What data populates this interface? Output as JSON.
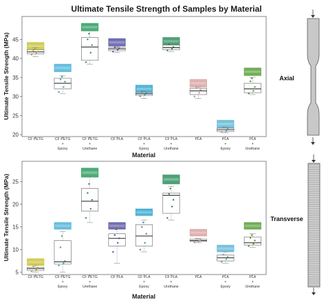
{
  "chart_data": {
    "type": "box",
    "title": "Ultimate Tensile Strength of Samples by Material",
    "categories": [
      [
        "CF PETG"
      ],
      [
        "CF PETG",
        "+",
        "Epoxy"
      ],
      [
        "CF PETG",
        "+",
        "Urethane"
      ],
      [
        "CF PLA"
      ],
      [
        "CF PLA",
        "+",
        "Epoxy"
      ],
      [
        "CF PLA",
        "+",
        "Urethane"
      ],
      [
        "PLA"
      ],
      [
        "PLA",
        "+",
        "Epoxy"
      ],
      [
        "PLA",
        "+",
        "Urethane"
      ]
    ],
    "group_colors": [
      "#c9c43a",
      "#4fb3d9",
      "#2f9e62",
      "#5a58a8",
      "#3aa9cf",
      "#2f8f5f",
      "#d9a3a3",
      "#63b7d6",
      "#5aa03c"
    ],
    "panels": [
      {
        "label": "Axial",
        "xlabel": "Material",
        "ylabel": "Ultimate Tensile Strength (MPa)",
        "ylim": [
          19.5,
          51
        ],
        "yticks": [
          20,
          25,
          30,
          35,
          40,
          45
        ],
        "groups": [
          {
            "min": 40.5,
            "q1": 41.2,
            "median": 41.7,
            "q3": 42.3,
            "max": 42.8,
            "label_band": [
              42.3,
              44.2
            ],
            "points": [
              41.0,
              41.5,
              41.8,
              42.1,
              42.4
            ]
          },
          {
            "min": 30.8,
            "q1": 32.0,
            "median": 33.5,
            "q3": 34.8,
            "max": 35.5,
            "label_band": [
              36.5,
              38.5
            ],
            "points": [
              31.2,
              32.5,
              33.9,
              34.5,
              35.2
            ]
          },
          {
            "min": 38.5,
            "q1": 39.5,
            "median": 43.0,
            "q3": 45.5,
            "max": 47.5,
            "label_band": [
              47.2,
              49.2
            ],
            "points": [
              39.0,
              41.5,
              43.5,
              45.0,
              46.5
            ]
          },
          {
            "min": 41.5,
            "q1": 42.0,
            "median": 42.5,
            "q3": 42.8,
            "max": 43.0,
            "label_band": [
              43.2,
              45.2
            ],
            "points": [
              41.8,
              42.3,
              42.6,
              42.9
            ]
          },
          {
            "min": 29.5,
            "q1": 30.3,
            "median": 30.7,
            "q3": 31.0,
            "max": 31.5,
            "label_band": [
              31.0,
              33.0
            ],
            "points": [
              30.1,
              30.5,
              30.9,
              31.2
            ]
          },
          {
            "min": 41.8,
            "q1": 42.3,
            "median": 42.8,
            "q3": 43.5,
            "max": 44.0,
            "label_band": [
              43.5,
              45.5
            ],
            "points": [
              42.1,
              42.6,
              43.0,
              43.7
            ]
          },
          {
            "min": 29.5,
            "q1": 30.5,
            "median": 31.5,
            "q3": 32.2,
            "max": 32.5,
            "label_band": [
              32.5,
              34.5
            ],
            "points": [
              30.0,
              31.0,
              31.8,
              32.2
            ]
          },
          {
            "min": 20.5,
            "q1": 20.8,
            "median": 21.3,
            "q3": 21.7,
            "max": 22.0,
            "label_band": [
              21.8,
              23.8
            ],
            "points": [
              20.7,
              21.1,
              21.5,
              21.9
            ]
          },
          {
            "min": 30.5,
            "q1": 31.0,
            "median": 32.0,
            "q3": 33.5,
            "max": 35.0,
            "label_band": [
              35.5,
              37.5
            ],
            "points": [
              30.8,
              31.5,
              32.5,
              34.0,
              34.8
            ]
          }
        ]
      },
      {
        "label": "Transverse",
        "xlabel": "Material",
        "ylabel": "Ultimate Tensile Strength (MPa)",
        "ylim": [
          4.5,
          29.5
        ],
        "yticks": [
          5,
          10,
          15,
          20,
          25
        ],
        "groups": [
          {
            "min": 5.0,
            "q1": 5.4,
            "median": 5.8,
            "q3": 6.1,
            "max": 6.5,
            "label_band": [
              6.5,
              8.0
            ],
            "points": [
              5.2,
              5.6,
              5.9,
              6.2
            ]
          },
          {
            "min": 5.0,
            "q1": 6.8,
            "median": 7.3,
            "q3": 12.0,
            "max": 14.0,
            "label_band": [
              14.5,
              16.0
            ],
            "points": [
              6.5,
              7.0,
              7.5,
              10.5,
              13.0
            ]
          },
          {
            "min": 16.0,
            "q1": 18.5,
            "median": 20.7,
            "q3": 23.5,
            "max": 26.0,
            "label_band": [
              26.0,
              28.0
            ],
            "points": [
              17.0,
              19.0,
              21.0,
              22.5,
              24.5
            ]
          },
          {
            "min": 7.0,
            "q1": 10.8,
            "median": 12.5,
            "q3": 13.5,
            "max": 15.0,
            "label_band": [
              14.5,
              16.0
            ],
            "points": [
              9.5,
              11.5,
              12.5,
              13.2,
              14.5
            ]
          },
          {
            "min": 9.5,
            "q1": 10.8,
            "median": 13.0,
            "q3": 15.5,
            "max": 16.5,
            "label_band": [
              17.5,
              19.0
            ],
            "points": [
              10.0,
              11.5,
              13.5,
              15.0,
              16.0
            ]
          },
          {
            "min": 16.5,
            "q1": 18.0,
            "median": 22.0,
            "q3": 22.5,
            "max": 24.0,
            "label_band": [
              24.5,
              26.5
            ],
            "points": [
              17.0,
              19.5,
              21.0,
              22.3,
              23.5
            ]
          },
          {
            "min": 11.5,
            "q1": 11.8,
            "median": 12.0,
            "q3": 12.3,
            "max": 12.5,
            "label_band": [
              13.0,
              14.5
            ],
            "points": [
              11.6,
              11.9,
              12.1,
              12.4
            ]
          },
          {
            "min": 7.0,
            "q1": 7.5,
            "median": 8.2,
            "q3": 8.8,
            "max": 9.5,
            "label_band": [
              9.5,
              11.0
            ],
            "points": [
              7.3,
              7.9,
              8.4,
              8.9
            ]
          },
          {
            "min": 10.5,
            "q1": 11.0,
            "median": 11.5,
            "q3": 12.8,
            "max": 13.5,
            "label_band": [
              14.5,
              16.0
            ],
            "points": [
              10.8,
              11.3,
              12.0,
              12.6,
              13.2
            ]
          }
        ]
      }
    ]
  }
}
